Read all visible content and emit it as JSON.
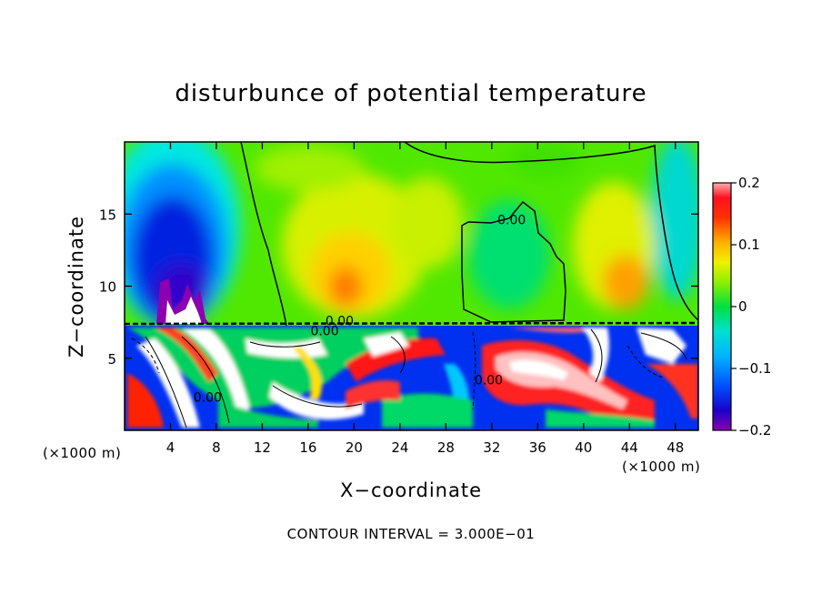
{
  "chart_data": {
    "type": "heatmap",
    "title": "disturbunce of potential temperature",
    "xlabel": "X−coordinate",
    "ylabel": "Z−coordinate",
    "x_unit": "(×1000 m)",
    "x_unit_right": "(×1000 m)",
    "xlim": [
      0,
      50
    ],
    "ylim": [
      0,
      20
    ],
    "x_ticks": [
      4,
      8,
      12,
      16,
      20,
      24,
      28,
      32,
      36,
      40,
      44,
      48
    ],
    "y_ticks": [
      5,
      10,
      15
    ],
    "colorbar": {
      "range": [
        -0.2,
        0.2
      ],
      "ticks": [
        {
          "value": 0.2,
          "label": "0.2"
        },
        {
          "value": 0.1,
          "label": "0.1"
        },
        {
          "value": 0,
          "label": "0"
        },
        {
          "value": -0.1,
          "label": "−0.1"
        },
        {
          "value": -0.2,
          "label": "−0.2"
        }
      ],
      "colors": [
        "#8b00b0",
        "#3a00c8",
        "#0018d8",
        "#0050ff",
        "#0090ff",
        "#00c8ff",
        "#00e6e6",
        "#00d68a",
        "#00e23c",
        "#30e800",
        "#70f000",
        "#b4f400",
        "#e8f000",
        "#ffd000",
        "#ffa400",
        "#ff7800",
        "#ff4a00",
        "#ff1010",
        "#ff6070",
        "#ffb0b0"
      ]
    },
    "contour_labels": [
      {
        "x": 32.5,
        "y": 14.3,
        "text": "0.00"
      },
      {
        "x": 17.5,
        "y": 7.3,
        "text": "0.00"
      },
      {
        "x": 16.2,
        "y": 6.6,
        "text": "0.00"
      },
      {
        "x": 30.5,
        "y": 3.2,
        "text": "0.00"
      },
      {
        "x": 6.0,
        "y": 2.0,
        "text": "0.00"
      }
    ],
    "contour_interval_text": "CONTOUR INTERVAL =  3.000E−01"
  }
}
